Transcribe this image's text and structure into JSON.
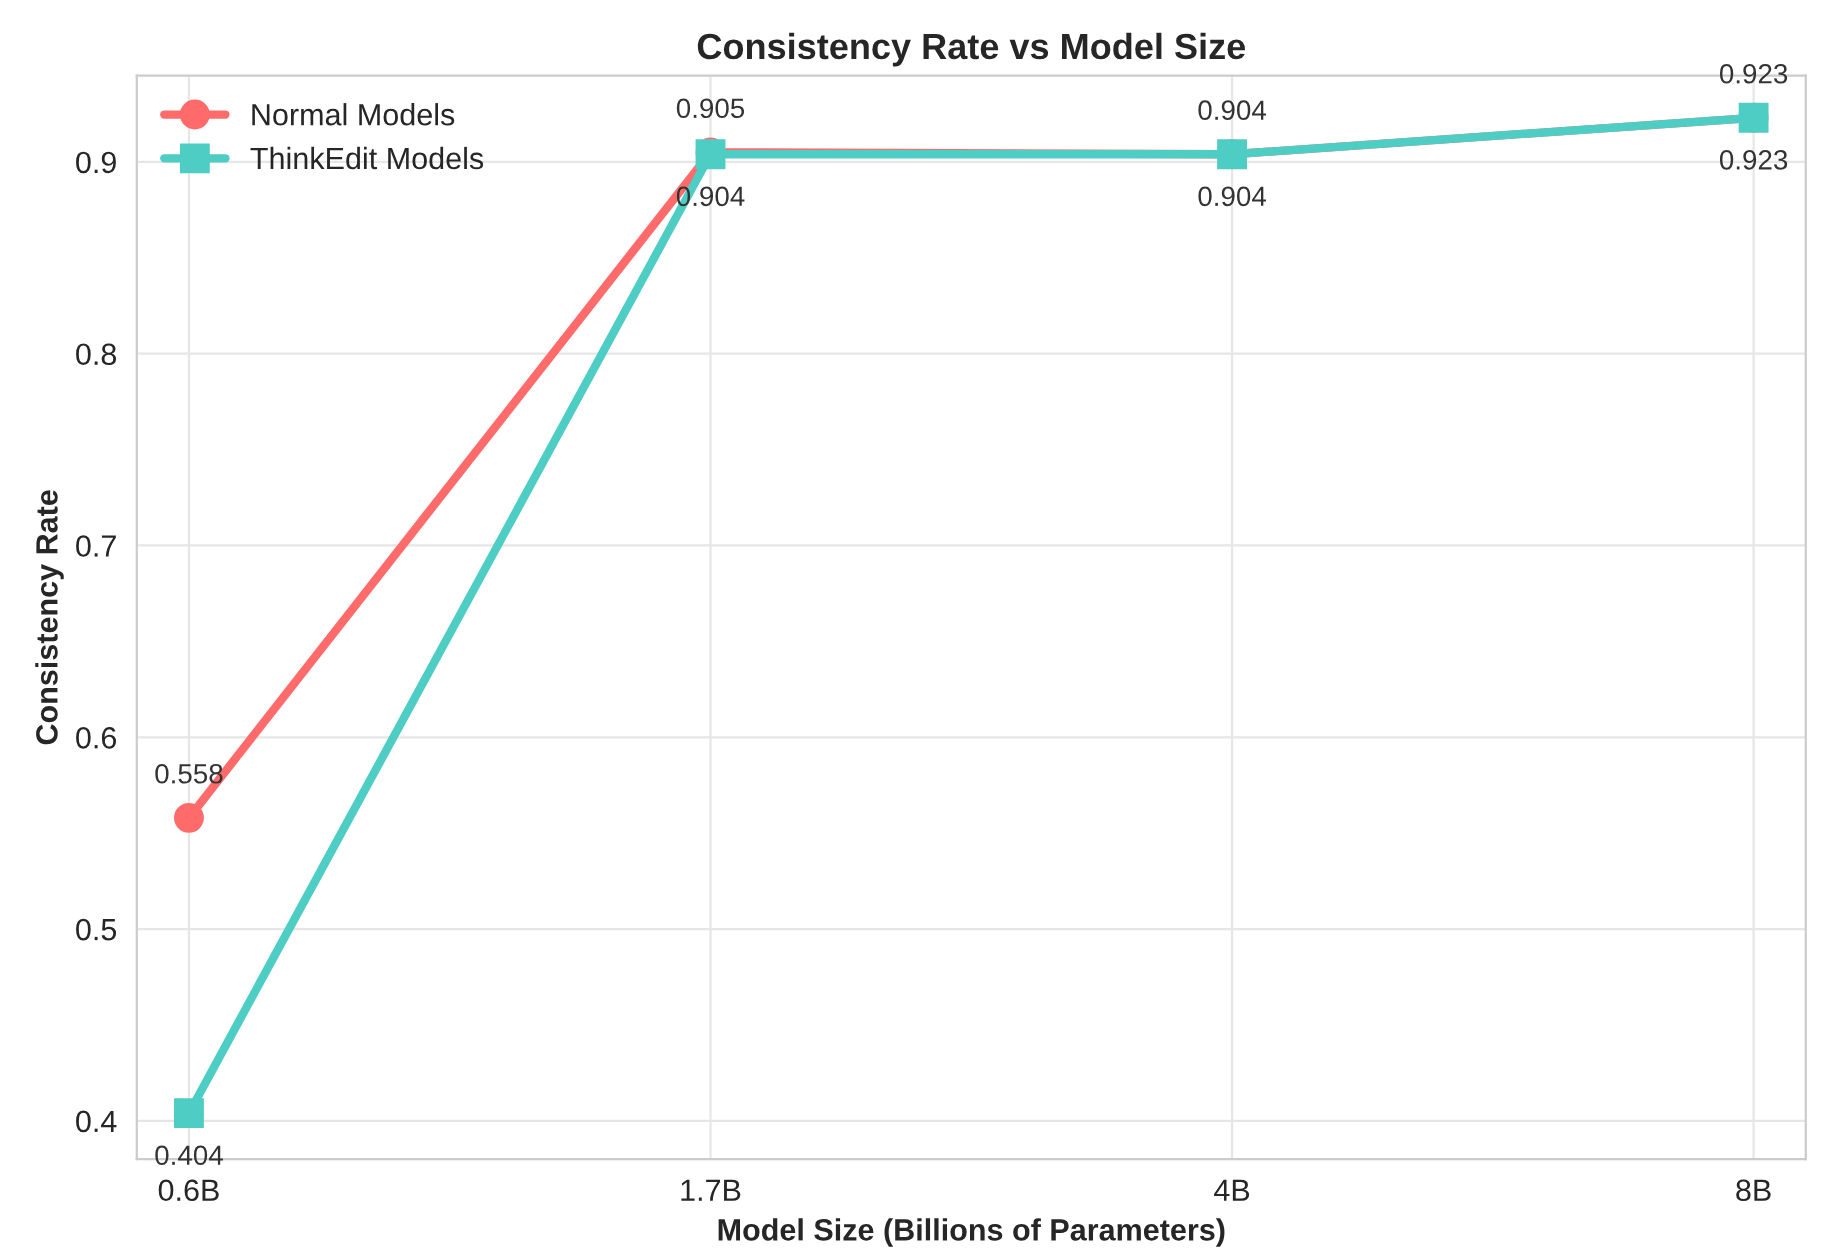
{
  "chart_data": {
    "type": "line",
    "title": "Consistency Rate vs Model Size",
    "xlabel": "Model Size (Billions of Parameters)",
    "ylabel": "Consistency Rate",
    "categories": [
      "0.6B",
      "1.7B",
      "4B",
      "8B"
    ],
    "series": [
      {
        "name": "Normal Models",
        "color": "#ff6b6b",
        "marker": "circle",
        "values": [
          0.558,
          0.905,
          0.904,
          0.923
        ]
      },
      {
        "name": "ThinkEdit Models",
        "color": "#4ecdc4",
        "marker": "square",
        "values": [
          0.404,
          0.904,
          0.904,
          0.923
        ]
      }
    ],
    "ylim": [
      0.38,
      0.945
    ],
    "yticks": [
      0.4,
      0.5,
      0.6,
      0.7,
      0.8,
      0.9
    ],
    "grid": true,
    "legend": "top left",
    "data_labels": true,
    "line_style": "solid"
  }
}
